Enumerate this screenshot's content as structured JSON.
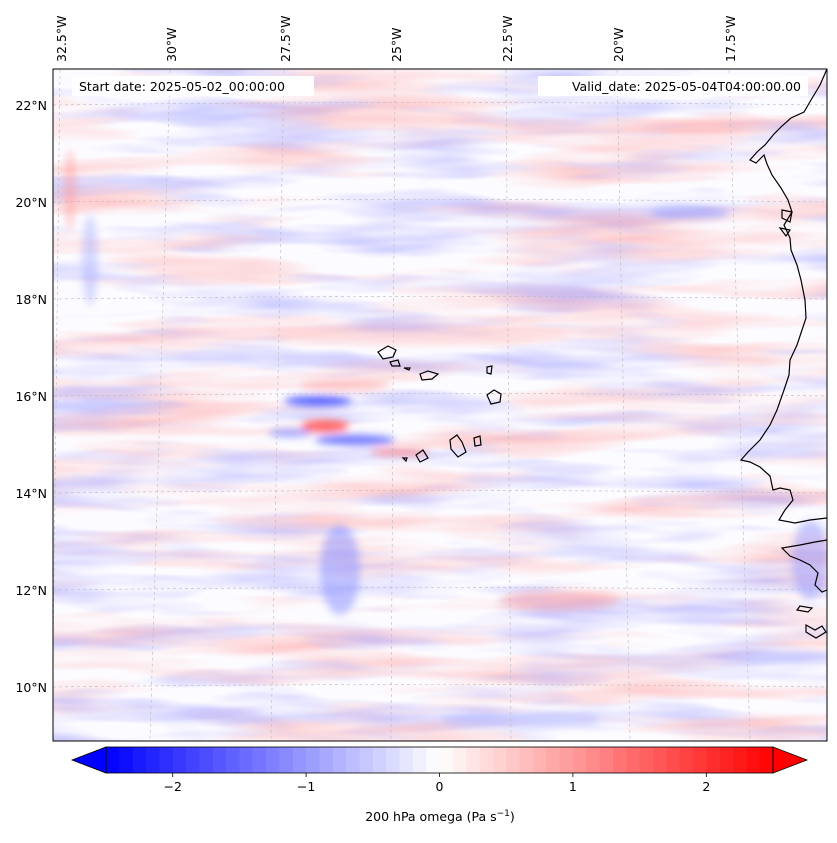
{
  "map": {
    "start_label": "Start date: 2025-05-02_00:00:00",
    "valid_label": "Valid_date: 2025-05-04T04:00:00.00",
    "lon_labels": [
      "32.5°W",
      "30°W",
      "27.5°W",
      "25°W",
      "22.5°W",
      "20°W",
      "17.5°W"
    ],
    "lat_labels": [
      "22°N",
      "20°N",
      "18°N",
      "16°N",
      "14°N",
      "12°N",
      "10°N"
    ],
    "lon_range": [
      -33,
      -15.5
    ],
    "lat_range": [
      8.8,
      22.7
    ],
    "gridlines": true,
    "coastline_color": "#000000"
  },
  "colorbar": {
    "label": "200 hPa omega (Pa s",
    "label_sup": "−1",
    "label_tail": ")",
    "ticks": [
      "−2",
      "−1",
      "0",
      "1",
      "2"
    ],
    "tick_values": [
      -2,
      -1,
      0,
      1,
      2
    ],
    "range": [
      -2.5,
      2.5
    ],
    "colors": {
      "low": "#0000ff",
      "mid": "#ffffff",
      "high": "#ff0000"
    },
    "extend": "both"
  }
}
